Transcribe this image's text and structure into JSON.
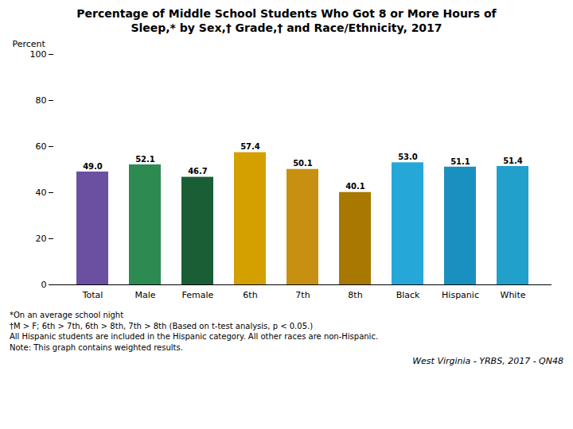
{
  "chart_data": {
    "type": "bar",
    "title": "Percentage of Middle School Students Who Got 8 or More Hours of",
    "subtitle": "Sleep,* by Sex,† Grade,† and Race/Ethnicity, 2017",
    "categories": [
      "Total",
      "Male",
      "Female",
      "6th",
      "7th",
      "8th",
      "Black",
      "Hispanic",
      "White"
    ],
    "values": [
      49.0,
      52.1,
      46.7,
      57.4,
      50.1,
      40.1,
      53.0,
      51.1,
      51.4
    ],
    "value_labels": [
      "49.0",
      "52.1",
      "46.7",
      "57.4",
      "50.1",
      "40.1",
      "53.0",
      "51.1",
      "51.4"
    ],
    "colors": [
      "#6B4FA0",
      "#2D8A50",
      "#1A5E35",
      "#D4A000",
      "#C89010",
      "#A87800",
      "#25A8D8",
      "#1A90C0",
      "#22A0CC"
    ],
    "ylabel": "Percent",
    "ylim": [
      0,
      100
    ],
    "yticks": [
      0,
      20,
      40,
      60,
      80,
      100
    ],
    "grid": false,
    "data_labels": true,
    "annotations": [
      "*On an average school night",
      "†M > F; 6th > 7th, 6th > 8th, 7th > 8th (Based on t-test analysis, p < 0.05.)",
      "All Hispanic students are included in the Hispanic category.  All other races are non-Hispanic.",
      "Note: This graph contains weighted results."
    ],
    "source": "West Virginia - YRBS, 2017 - QN48"
  }
}
